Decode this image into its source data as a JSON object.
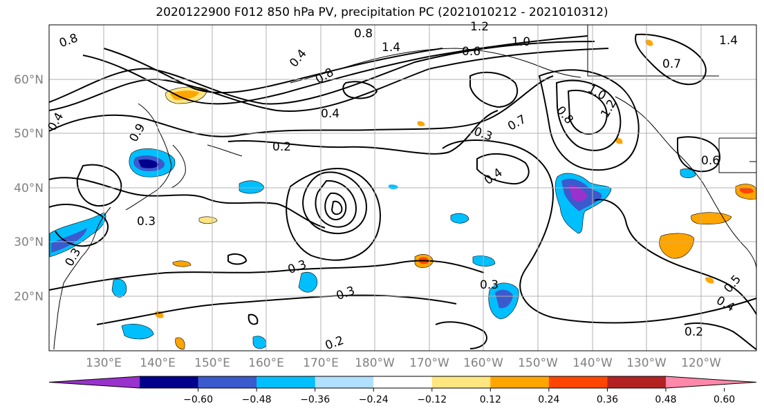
{
  "title": "2020122900 F012 850 hPa PV, precipitation PC (2021010212 - 2021010312)",
  "map": {
    "lat_labels": [
      "60°N",
      "50°N",
      "40°N",
      "30°N",
      "20°N"
    ],
    "lon_labels": [
      "130°E",
      "140°E",
      "150°E",
      "160°E",
      "170°E",
      "180°W",
      "170°W",
      "160°W",
      "150°W",
      "140°W",
      "130°W",
      "120°W"
    ],
    "contour_labels": [
      "0.8",
      "0.8",
      "1.4",
      "1.2",
      "1.0",
      "0.6",
      "0.7",
      "0.4",
      "0.8",
      "0.4",
      "0.2",
      "0.3",
      "0.4",
      "0.7",
      "0.8",
      "1.0",
      "1.2",
      "1.4",
      "0.6",
      "0.3",
      "0.3",
      "0.3",
      "0.3",
      "0.2",
      "0.5",
      "0.4",
      "0.2",
      "0.3",
      "0.4",
      "0.9"
    ],
    "grid_color": "#b0b0b0",
    "land_outline_color": "#000000"
  },
  "colorbar": {
    "tick_labels": [
      "−0.60",
      "−0.48",
      "−0.36",
      "−0.24",
      "−0.12",
      "0.12",
      "0.24",
      "0.36",
      "0.48",
      "0.60"
    ],
    "colors": [
      "#9932cc",
      "#00008b",
      "#3a5acd",
      "#00bfff",
      "#b0e0ff",
      "#ffffff",
      "#ffe680",
      "#ffa500",
      "#ff4500",
      "#b22222",
      "#ff88aa"
    ]
  }
}
